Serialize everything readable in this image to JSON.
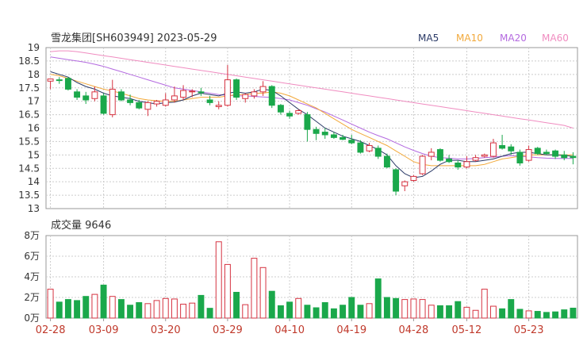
{
  "header": {
    "title": "雪龙集团[SH603949] 2023-05-29",
    "ma_labels": [
      {
        "label": "MA5",
        "color": "#2b3a67"
      },
      {
        "label": "MA10",
        "color": "#f2a93b"
      },
      {
        "label": "MA20",
        "color": "#b46ae0"
      },
      {
        "label": "MA60",
        "color": "#f08cc0"
      }
    ]
  },
  "volume_header": {
    "label": "成交量 9646"
  },
  "colors": {
    "up": "#d63341",
    "down": "#1aa84b",
    "grid": "#cccccc",
    "axis": "#999999",
    "text": "#333333",
    "date_text": "#c0392b"
  },
  "chart_data": [
    {
      "type": "candlestick",
      "title": "雪龙集团[SH603949] 2023-05-29",
      "ylim": [
        13,
        19
      ],
      "y_ticks": [
        "19",
        "18.5",
        "18",
        "17.5",
        "17",
        "16.5",
        "16",
        "15.5",
        "15",
        "14.5",
        "14",
        "13.5",
        "13"
      ],
      "x_tick_labels": [
        {
          "index": 0,
          "label": "02-28"
        },
        {
          "index": 6,
          "label": "03-09"
        },
        {
          "index": 13,
          "label": "03-20"
        },
        {
          "index": 20,
          "label": "03-29"
        },
        {
          "index": 27,
          "label": "04-10"
        },
        {
          "index": 34,
          "label": "04-19"
        },
        {
          "index": 41,
          "label": "04-28"
        },
        {
          "index": 47,
          "label": "05-12"
        },
        {
          "index": 54,
          "label": "05-23"
        }
      ],
      "ohlc": [
        [
          17.75,
          17.85,
          17.45,
          17.83
        ],
        [
          17.8,
          17.9,
          17.65,
          17.78
        ],
        [
          17.85,
          17.9,
          17.4,
          17.45
        ],
        [
          17.35,
          17.45,
          17.05,
          17.15
        ],
        [
          17.2,
          17.35,
          16.9,
          17.05
        ],
        [
          17.1,
          17.55,
          17.0,
          17.35
        ],
        [
          17.2,
          17.3,
          16.5,
          16.55
        ],
        [
          16.5,
          17.8,
          16.4,
          17.45
        ],
        [
          17.35,
          17.45,
          17.0,
          17.05
        ],
        [
          17.05,
          17.25,
          16.85,
          16.95
        ],
        [
          16.95,
          17.05,
          16.7,
          16.75
        ],
        [
          16.7,
          17.0,
          16.45,
          16.95
        ],
        [
          16.9,
          17.05,
          16.8,
          17.0
        ],
        [
          16.85,
          17.3,
          16.8,
          17.05
        ],
        [
          17.05,
          17.55,
          16.95,
          17.2
        ],
        [
          17.15,
          17.6,
          17.05,
          17.4
        ],
        [
          17.35,
          17.45,
          17.15,
          17.38
        ],
        [
          17.35,
          17.5,
          17.2,
          17.32
        ],
        [
          17.05,
          17.2,
          16.85,
          16.95
        ],
        [
          16.8,
          17.0,
          16.7,
          16.85
        ],
        [
          16.85,
          18.35,
          16.8,
          17.8
        ],
        [
          17.8,
          17.85,
          17.05,
          17.15
        ],
        [
          17.1,
          17.3,
          16.95,
          17.25
        ],
        [
          17.2,
          17.45,
          17.1,
          17.35
        ],
        [
          17.35,
          17.75,
          17.2,
          17.55
        ],
        [
          17.55,
          17.6,
          16.75,
          16.85
        ],
        [
          16.85,
          16.9,
          16.5,
          16.6
        ],
        [
          16.55,
          16.65,
          16.35,
          16.45
        ],
        [
          16.55,
          16.7,
          16.5,
          16.65
        ],
        [
          16.5,
          16.6,
          15.5,
          15.95
        ],
        [
          15.95,
          16.05,
          15.55,
          15.8
        ],
        [
          15.85,
          16.0,
          15.6,
          15.75
        ],
        [
          15.75,
          15.85,
          15.6,
          15.65
        ],
        [
          15.65,
          15.75,
          15.55,
          15.58
        ],
        [
          15.55,
          15.75,
          15.4,
          15.45
        ],
        [
          15.45,
          15.55,
          15.05,
          15.1
        ],
        [
          15.15,
          15.45,
          15.1,
          15.35
        ],
        [
          15.25,
          15.35,
          14.85,
          14.95
        ],
        [
          14.95,
          15.05,
          14.5,
          14.55
        ],
        [
          14.45,
          14.5,
          13.5,
          13.65
        ],
        [
          13.85,
          14.05,
          13.65,
          14.0
        ],
        [
          14.05,
          14.25,
          14.0,
          14.2
        ],
        [
          14.3,
          15.0,
          14.25,
          14.95
        ],
        [
          14.95,
          15.25,
          14.8,
          15.1
        ],
        [
          15.2,
          15.25,
          14.75,
          14.8
        ],
        [
          14.85,
          15.0,
          14.7,
          14.75
        ],
        [
          14.7,
          14.8,
          14.45,
          14.55
        ],
        [
          14.55,
          14.95,
          14.5,
          14.75
        ],
        [
          14.8,
          15.0,
          14.75,
          14.9
        ],
        [
          14.95,
          15.05,
          14.9,
          15.0
        ],
        [
          14.95,
          15.6,
          14.9,
          15.45
        ],
        [
          15.35,
          15.75,
          15.2,
          15.25
        ],
        [
          15.3,
          15.4,
          15.0,
          15.15
        ],
        [
          15.1,
          15.2,
          14.6,
          14.7
        ],
        [
          14.8,
          15.35,
          14.75,
          15.2
        ],
        [
          15.25,
          15.3,
          15.0,
          15.05
        ],
        [
          15.1,
          15.2,
          15.0,
          15.05
        ],
        [
          15.15,
          15.2,
          14.85,
          14.95
        ],
        [
          15.0,
          15.15,
          14.8,
          14.9
        ],
        [
          14.95,
          15.1,
          14.65,
          14.9
        ]
      ],
      "ma5": [
        18.1,
        18.0,
        17.9,
        17.7,
        17.55,
        17.45,
        17.3,
        17.2,
        17.15,
        17.1,
        17.0,
        16.95,
        16.9,
        16.95,
        16.97,
        17.05,
        17.2,
        17.3,
        17.25,
        17.2,
        17.3,
        17.35,
        17.3,
        17.35,
        17.45,
        17.4,
        17.2,
        16.95,
        16.7,
        16.5,
        16.25,
        16.0,
        15.85,
        15.7,
        15.6,
        15.5,
        15.35,
        15.2,
        15.0,
        14.6,
        14.3,
        14.15,
        14.2,
        14.4,
        14.65,
        14.8,
        14.8,
        14.75,
        14.75,
        14.8,
        14.85,
        14.95,
        15.05,
        15.1,
        15.1,
        15.05,
        15.0,
        15.0,
        14.98,
        14.95
      ],
      "ma10": [
        18.0,
        17.95,
        17.85,
        17.75,
        17.65,
        17.55,
        17.45,
        17.38,
        17.3,
        17.2,
        17.1,
        17.05,
        17.02,
        17.0,
        17.0,
        17.05,
        17.1,
        17.15,
        17.15,
        17.15,
        17.2,
        17.25,
        17.25,
        17.3,
        17.3,
        17.35,
        17.3,
        17.2,
        17.05,
        16.9,
        16.75,
        16.55,
        16.35,
        16.15,
        15.95,
        15.8,
        15.65,
        15.5,
        15.35,
        15.15,
        14.95,
        14.75,
        14.65,
        14.6,
        14.6,
        14.6,
        14.6,
        14.6,
        14.6,
        14.65,
        14.75,
        14.85,
        14.9,
        14.95,
        15.0,
        15.0,
        15.0,
        15.0,
        15.0,
        15.0
      ],
      "ma20": [
        18.65,
        18.6,
        18.55,
        18.5,
        18.45,
        18.38,
        18.3,
        18.2,
        18.1,
        18.0,
        17.9,
        17.8,
        17.7,
        17.6,
        17.5,
        17.45,
        17.4,
        17.35,
        17.3,
        17.25,
        17.22,
        17.2,
        17.2,
        17.18,
        17.16,
        17.14,
        17.1,
        17.05,
        16.95,
        16.85,
        16.72,
        16.6,
        16.45,
        16.3,
        16.15,
        16.0,
        15.85,
        15.72,
        15.6,
        15.45,
        15.3,
        15.17,
        15.05,
        14.95,
        14.9,
        14.88,
        14.85,
        14.85,
        14.87,
        14.9,
        14.92,
        14.95,
        14.97,
        14.95,
        14.93,
        14.9,
        14.88,
        14.87,
        14.87,
        14.87
      ],
      "ma60": [
        18.85,
        18.88,
        18.88,
        18.85,
        18.8,
        18.75,
        18.7,
        18.65,
        18.6,
        18.55,
        18.5,
        18.45,
        18.4,
        18.35,
        18.3,
        18.25,
        18.2,
        18.15,
        18.1,
        18.05,
        18.0,
        17.95,
        17.9,
        17.85,
        17.8,
        17.75,
        17.7,
        17.65,
        17.6,
        17.55,
        17.5,
        17.45,
        17.4,
        17.35,
        17.3,
        17.25,
        17.2,
        17.15,
        17.1,
        17.05,
        17.0,
        16.95,
        16.9,
        16.85,
        16.8,
        16.75,
        16.7,
        16.65,
        16.6,
        16.55,
        16.5,
        16.45,
        16.4,
        16.35,
        16.3,
        16.25,
        16.2,
        16.15,
        16.1,
        16.0
      ]
    },
    {
      "type": "bar",
      "title": "成交量 9646",
      "ylim": [
        0,
        80000
      ],
      "y_ticks": [
        "8万",
        "6万",
        "4万",
        "2万",
        "0万"
      ],
      "values": [
        28000,
        15500,
        18000,
        17000,
        21000,
        23000,
        32000,
        21000,
        18000,
        12500,
        15000,
        14000,
        17000,
        19000,
        18500,
        13500,
        14500,
        22000,
        9500,
        74000,
        52000,
        25000,
        13000,
        58000,
        49000,
        26000,
        12000,
        15500,
        19000,
        12500,
        10000,
        15000,
        9000,
        12500,
        20000,
        12500,
        14000,
        38000,
        20000,
        19000,
        18000,
        18500,
        18000,
        12500,
        12000,
        12000,
        16000,
        10500,
        7500,
        28000,
        11500,
        9000,
        18000,
        8500,
        7000,
        6500,
        5500,
        6000,
        8000,
        9646
      ]
    }
  ]
}
